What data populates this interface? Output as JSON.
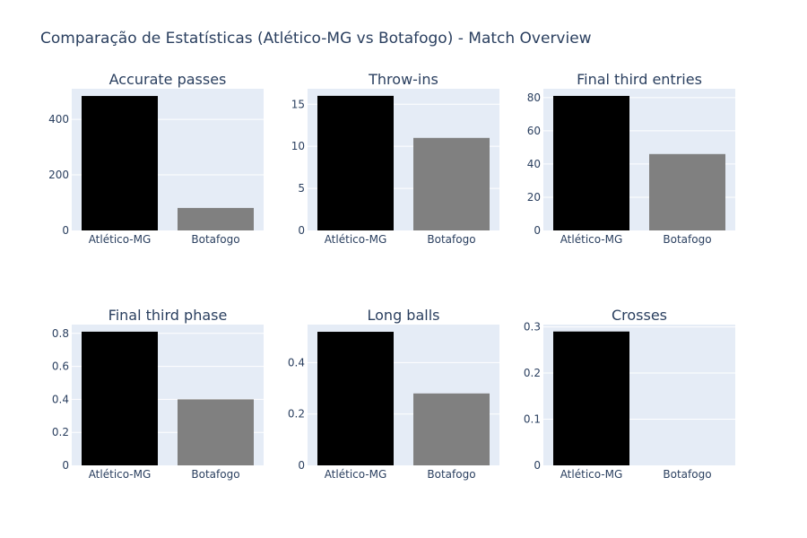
{
  "title": "Comparação de Estatísticas (Atlético-MG vs Botafogo)  - Match Overview",
  "colors": {
    "plot_bg": "#e5ecf6",
    "grid": "#ffffff",
    "text": "#2a3f5f",
    "team1": "#000000",
    "team2": "#808080"
  },
  "chart_data": [
    {
      "type": "bar",
      "title": "Accurate passes",
      "categories": [
        "Atlético-MG",
        "Botafogo"
      ],
      "values": [
        484,
        81
      ],
      "ylim": [
        0,
        510
      ],
      "yticks": [
        0,
        200,
        400
      ],
      "ytick_labels": [
        "0",
        "200",
        "400"
      ],
      "grid": true
    },
    {
      "type": "bar",
      "title": "Throw-ins",
      "categories": [
        "Atlético-MG",
        "Botafogo"
      ],
      "values": [
        16,
        11
      ],
      "ylim": [
        0,
        16.84
      ],
      "yticks": [
        0,
        5,
        10,
        15
      ],
      "ytick_labels": [
        "0",
        "5",
        "10",
        "15"
      ],
      "grid": true
    },
    {
      "type": "bar",
      "title": "Final third entries",
      "categories": [
        "Atlético-MG",
        "Botafogo"
      ],
      "values": [
        81,
        46
      ],
      "ylim": [
        0,
        85.3
      ],
      "yticks": [
        0,
        20,
        40,
        60,
        80
      ],
      "ytick_labels": [
        "0",
        "20",
        "40",
        "60",
        "80"
      ],
      "grid": true
    },
    {
      "type": "bar",
      "title": "Final third phase",
      "categories": [
        "Atlético-MG",
        "Botafogo"
      ],
      "values": [
        0.81,
        0.4
      ],
      "ylim": [
        0,
        0.853
      ],
      "yticks": [
        0,
        0.2,
        0.4,
        0.6,
        0.8
      ],
      "ytick_labels": [
        "0",
        "0.2",
        "0.4",
        "0.6",
        "0.8"
      ],
      "grid": true
    },
    {
      "type": "bar",
      "title": "Long balls",
      "categories": [
        "Atlético-MG",
        "Botafogo"
      ],
      "values": [
        0.52,
        0.28
      ],
      "ylim": [
        0,
        0.548
      ],
      "yticks": [
        0,
        0.2,
        0.4
      ],
      "ytick_labels": [
        "0",
        "0.2",
        "0.4"
      ],
      "grid": true
    },
    {
      "type": "bar",
      "title": "Crosses",
      "categories": [
        "Atlético-MG",
        "Botafogo"
      ],
      "values": [
        0.29,
        0
      ],
      "ylim": [
        0,
        0.305
      ],
      "yticks": [
        0,
        0.1,
        0.2,
        0.3
      ],
      "ytick_labels": [
        "0",
        "0.1",
        "0.2",
        "0.3"
      ],
      "grid": true
    }
  ]
}
